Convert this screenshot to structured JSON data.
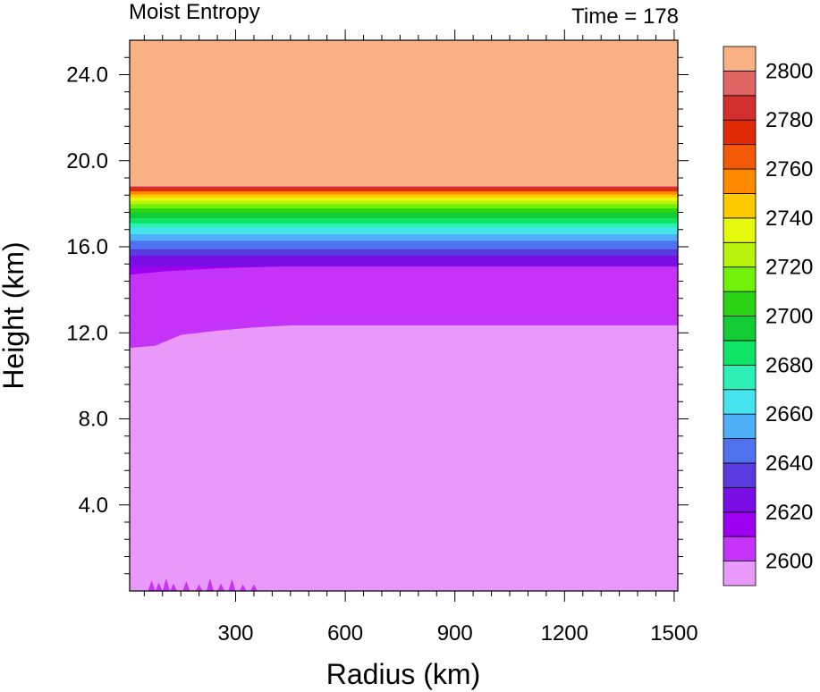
{
  "chart_data": {
    "type": "heatmap",
    "title_left": "Moist Entropy",
    "title_right": "Time = 178",
    "xlabel": "Radius (km)",
    "ylabel": "Height (km)",
    "xlim": [
      10,
      1510
    ],
    "ylim": [
      0,
      25.6
    ],
    "xticks": [
      300,
      600,
      900,
      1200,
      1500
    ],
    "xtick_labels": [
      "300",
      "600",
      "900",
      "1200",
      "1500"
    ],
    "yticks": [
      4,
      8,
      12,
      16,
      20,
      24
    ],
    "ytick_labels": [
      "4.0",
      "8.0",
      "12.0",
      "16.0",
      "20.0",
      "24.0"
    ],
    "colorbar": {
      "levels": [
        2600,
        2610,
        2620,
        2630,
        2640,
        2650,
        2660,
        2670,
        2680,
        2690,
        2700,
        2710,
        2720,
        2730,
        2740,
        2750,
        2760,
        2770,
        2780,
        2790,
        2800
      ],
      "label_values": [
        "2600",
        "2620",
        "2640",
        "2660",
        "2680",
        "2700",
        "2720",
        "2740",
        "2760",
        "2780",
        "2800"
      ],
      "colors": [
        "#e899f9",
        "#c533f8",
        "#9d00f0",
        "#7a0de6",
        "#5a3adf",
        "#4f72ef",
        "#4fb0f7",
        "#45e4ee",
        "#2cf0b6",
        "#10e466",
        "#13cc35",
        "#2ad415",
        "#72f00a",
        "#b8f20d",
        "#e5f90d",
        "#ffc900",
        "#ff8a00",
        "#f25a08",
        "#e02a08",
        "#d42f2f",
        "#e06666",
        "#f8b085"
      ]
    },
    "fields": {
      "top_value": 2810,
      "top_base_km": 18.8,
      "strat_bands_km": [
        {
          "y0": 15.1,
          "y1": 15.6,
          "color_index": 3
        },
        {
          "y0": 15.6,
          "y1": 15.9,
          "color_index": 4
        },
        {
          "y0": 15.9,
          "y1": 16.3,
          "color_index": 5
        },
        {
          "y0": 16.3,
          "y1": 16.6,
          "color_index": 6
        },
        {
          "y0": 16.6,
          "y1": 16.9,
          "color_index": 7
        },
        {
          "y0": 16.9,
          "y1": 17.1,
          "color_index": 8
        },
        {
          "y0": 17.1,
          "y1": 17.35,
          "color_index": 9
        },
        {
          "y0": 17.35,
          "y1": 17.6,
          "color_index": 10
        },
        {
          "y0": 17.6,
          "y1": 17.8,
          "color_index": 11
        },
        {
          "y0": 17.8,
          "y1": 18.0,
          "color_index": 12
        },
        {
          "y0": 18.0,
          "y1": 18.15,
          "color_index": 13
        },
        {
          "y0": 18.15,
          "y1": 18.3,
          "color_index": 14
        },
        {
          "y0": 18.3,
          "y1": 18.45,
          "color_index": 15
        },
        {
          "y0": 18.45,
          "y1": 18.6,
          "color_index": 16
        },
        {
          "y0": 18.6,
          "y1": 18.7,
          "color_index": 18
        },
        {
          "y0": 18.7,
          "y1": 18.8,
          "color_index": 19
        }
      ],
      "mid_boundary_km": [
        [
          10,
          11.3
        ],
        [
          80,
          11.4
        ],
        [
          150,
          11.9
        ],
        [
          250,
          12.1
        ],
        [
          350,
          12.25
        ],
        [
          450,
          12.35
        ],
        [
          600,
          12.35
        ],
        [
          800,
          12.35
        ],
        [
          1510,
          12.35
        ]
      ],
      "upper_mid_boundary_km": [
        [
          10,
          14.7
        ],
        [
          100,
          14.85
        ],
        [
          250,
          15.0
        ],
        [
          450,
          15.1
        ],
        [
          1510,
          15.1
        ]
      ],
      "surface_spikes_km": [
        [
          70,
          0.5
        ],
        [
          90,
          0.4
        ],
        [
          110,
          0.6
        ],
        [
          130,
          0.35
        ],
        [
          165,
          0.45
        ],
        [
          200,
          0.3
        ],
        [
          230,
          0.6
        ],
        [
          260,
          0.35
        ],
        [
          290,
          0.55
        ],
        [
          320,
          0.3
        ],
        [
          350,
          0.3
        ]
      ]
    }
  }
}
